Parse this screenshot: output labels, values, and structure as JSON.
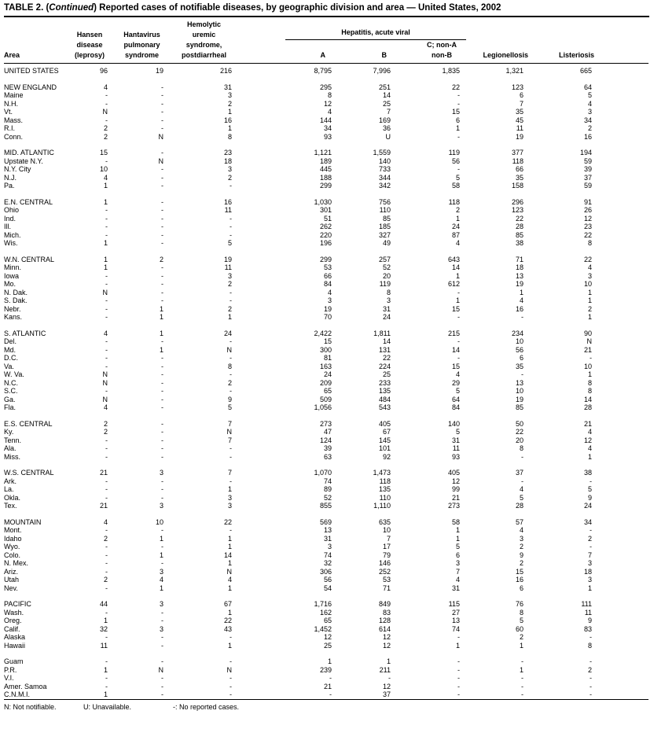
{
  "page": {
    "title": {
      "prefix": "TABLE 2. (",
      "continued": "Continued",
      "suffix": ") Reported cases of notifiable diseases, by geographic division and area — United States, 2002"
    },
    "footnotes": [
      "N: Not notifiable.",
      "U: Unavailable.",
      "-: No reported cases."
    ]
  },
  "columns": {
    "area": "Area",
    "hansen_lines": [
      "Hansen",
      "disease",
      "(leprosy)"
    ],
    "hantavirus_lines": [
      "Hantavirus",
      "pulmonary",
      "syndrome"
    ],
    "hus_lines": [
      "Hemolytic",
      "uremic",
      "syndrome,",
      "postdiarrheal"
    ],
    "hepatitis_group": "Hepatitis, acute viral",
    "hep_a": "A",
    "hep_b": "B",
    "hep_c_lines": [
      "C; non-A",
      "non-B"
    ],
    "legionellosis": "Legionellosis",
    "listeriosis": "Listeriosis"
  },
  "rows": [
    {
      "area": "UNITED STATES",
      "group_start": false,
      "values": [
        "96",
        "19",
        "216",
        "8,795",
        "7,996",
        "1,835",
        "1,321",
        "665"
      ]
    },
    {
      "area": "NEW ENGLAND",
      "group_start": true,
      "values": [
        "4",
        "-",
        "31",
        "295",
        "251",
        "22",
        "123",
        "64"
      ]
    },
    {
      "area": "Maine",
      "group_start": false,
      "values": [
        "-",
        "-",
        "3",
        "8",
        "14",
        "-",
        "6",
        "5"
      ]
    },
    {
      "area": "N.H.",
      "group_start": false,
      "values": [
        "-",
        "-",
        "2",
        "12",
        "25",
        "-",
        "7",
        "4"
      ]
    },
    {
      "area": "Vt.",
      "group_start": false,
      "values": [
        "N",
        "-",
        "1",
        "4",
        "7",
        "15",
        "35",
        "3"
      ]
    },
    {
      "area": "Mass.",
      "group_start": false,
      "values": [
        "-",
        "-",
        "16",
        "144",
        "169",
        "6",
        "45",
        "34"
      ]
    },
    {
      "area": "R.I.",
      "group_start": false,
      "values": [
        "2",
        "-",
        "1",
        "34",
        "36",
        "1",
        "11",
        "2"
      ]
    },
    {
      "area": "Conn.",
      "group_start": false,
      "values": [
        "2",
        "N",
        "8",
        "93",
        "U",
        "-",
        "19",
        "16"
      ]
    },
    {
      "area": "MID. ATLANTIC",
      "group_start": true,
      "values": [
        "15",
        "-",
        "23",
        "1,121",
        "1,559",
        "119",
        "377",
        "194"
      ]
    },
    {
      "area": "Upstate N.Y.",
      "group_start": false,
      "values": [
        "-",
        "N",
        "18",
        "189",
        "140",
        "56",
        "118",
        "59"
      ]
    },
    {
      "area": "N.Y. City",
      "group_start": false,
      "values": [
        "10",
        "-",
        "3",
        "445",
        "733",
        "-",
        "66",
        "39"
      ]
    },
    {
      "area": "N.J.",
      "group_start": false,
      "values": [
        "4",
        "-",
        "2",
        "188",
        "344",
        "5",
        "35",
        "37"
      ]
    },
    {
      "area": "Pa.",
      "group_start": false,
      "values": [
        "1",
        "-",
        "-",
        "299",
        "342",
        "58",
        "158",
        "59"
      ]
    },
    {
      "area": "E.N. CENTRAL",
      "group_start": true,
      "values": [
        "1",
        "-",
        "16",
        "1,030",
        "756",
        "118",
        "296",
        "91"
      ]
    },
    {
      "area": "Ohio",
      "group_start": false,
      "values": [
        "-",
        "-",
        "11",
        "301",
        "110",
        "2",
        "123",
        "26"
      ]
    },
    {
      "area": "Ind.",
      "group_start": false,
      "values": [
        "-",
        "-",
        "-",
        "51",
        "85",
        "1",
        "22",
        "12"
      ]
    },
    {
      "area": "Ill.",
      "group_start": false,
      "values": [
        "-",
        "-",
        "-",
        "262",
        "185",
        "24",
        "28",
        "23"
      ]
    },
    {
      "area": "Mich.",
      "group_start": false,
      "values": [
        "-",
        "-",
        "-",
        "220",
        "327",
        "87",
        "85",
        "22"
      ]
    },
    {
      "area": "Wis.",
      "group_start": false,
      "values": [
        "1",
        "-",
        "5",
        "196",
        "49",
        "4",
        "38",
        "8"
      ]
    },
    {
      "area": "W.N. CENTRAL",
      "group_start": true,
      "values": [
        "1",
        "2",
        "19",
        "299",
        "257",
        "643",
        "71",
        "22"
      ]
    },
    {
      "area": "Minn.",
      "group_start": false,
      "values": [
        "1",
        "-",
        "11",
        "53",
        "52",
        "14",
        "18",
        "4"
      ]
    },
    {
      "area": "Iowa",
      "group_start": false,
      "values": [
        "-",
        "-",
        "3",
        "66",
        "20",
        "1",
        "13",
        "3"
      ]
    },
    {
      "area": "Mo.",
      "group_start": false,
      "values": [
        "-",
        "-",
        "2",
        "84",
        "119",
        "612",
        "19",
        "10"
      ]
    },
    {
      "area": "N. Dak.",
      "group_start": false,
      "values": [
        "N",
        "-",
        "-",
        "4",
        "8",
        "-",
        "1",
        "1"
      ]
    },
    {
      "area": "S. Dak.",
      "group_start": false,
      "values": [
        "-",
        "-",
        "-",
        "3",
        "3",
        "1",
        "4",
        "1"
      ]
    },
    {
      "area": "Nebr.",
      "group_start": false,
      "values": [
        "-",
        "1",
        "2",
        "19",
        "31",
        "15",
        "16",
        "2"
      ]
    },
    {
      "area": "Kans.",
      "group_start": false,
      "values": [
        "-",
        "1",
        "1",
        "70",
        "24",
        "-",
        "-",
        "1"
      ]
    },
    {
      "area": "S. ATLANTIC",
      "group_start": true,
      "values": [
        "4",
        "1",
        "24",
        "2,422",
        "1,811",
        "215",
        "234",
        "90"
      ]
    },
    {
      "area": "Del.",
      "group_start": false,
      "values": [
        "-",
        "-",
        "-",
        "15",
        "14",
        "-",
        "10",
        "N"
      ]
    },
    {
      "area": "Md.",
      "group_start": false,
      "values": [
        "-",
        "1",
        "N",
        "300",
        "131",
        "14",
        "56",
        "21"
      ]
    },
    {
      "area": "D.C.",
      "group_start": false,
      "values": [
        "-",
        "-",
        "-",
        "81",
        "22",
        "-",
        "6",
        "-"
      ]
    },
    {
      "area": "Va.",
      "group_start": false,
      "values": [
        "-",
        "-",
        "8",
        "163",
        "224",
        "15",
        "35",
        "10"
      ]
    },
    {
      "area": "W. Va.",
      "group_start": false,
      "values": [
        "N",
        "-",
        "-",
        "24",
        "25",
        "4",
        "-",
        "1"
      ]
    },
    {
      "area": "N.C.",
      "group_start": false,
      "values": [
        "N",
        "-",
        "2",
        "209",
        "233",
        "29",
        "13",
        "8"
      ]
    },
    {
      "area": "S.C.",
      "group_start": false,
      "values": [
        "-",
        "-",
        "-",
        "65",
        "135",
        "5",
        "10",
        "8"
      ]
    },
    {
      "area": "Ga.",
      "group_start": false,
      "values": [
        "N",
        "-",
        "9",
        "509",
        "484",
        "64",
        "19",
        "14"
      ]
    },
    {
      "area": "Fla.",
      "group_start": false,
      "values": [
        "4",
        "-",
        "5",
        "1,056",
        "543",
        "84",
        "85",
        "28"
      ]
    },
    {
      "area": "E.S. CENTRAL",
      "group_start": true,
      "values": [
        "2",
        "-",
        "7",
        "273",
        "405",
        "140",
        "50",
        "21"
      ]
    },
    {
      "area": "Ky.",
      "group_start": false,
      "values": [
        "2",
        "-",
        "N",
        "47",
        "67",
        "5",
        "22",
        "4"
      ]
    },
    {
      "area": "Tenn.",
      "group_start": false,
      "values": [
        "-",
        "-",
        "7",
        "124",
        "145",
        "31",
        "20",
        "12"
      ]
    },
    {
      "area": "Ala.",
      "group_start": false,
      "values": [
        "-",
        "-",
        "-",
        "39",
        "101",
        "11",
        "8",
        "4"
      ]
    },
    {
      "area": "Miss.",
      "group_start": false,
      "values": [
        "-",
        "-",
        "-",
        "63",
        "92",
        "93",
        "-",
        "1"
      ]
    },
    {
      "area": "W.S. CENTRAL",
      "group_start": true,
      "values": [
        "21",
        "3",
        "7",
        "1,070",
        "1,473",
        "405",
        "37",
        "38"
      ]
    },
    {
      "area": "Ark.",
      "group_start": false,
      "values": [
        "-",
        "-",
        "-",
        "74",
        "118",
        "12",
        "-",
        "-"
      ]
    },
    {
      "area": "La.",
      "group_start": false,
      "values": [
        "-",
        "-",
        "1",
        "89",
        "135",
        "99",
        "4",
        "5"
      ]
    },
    {
      "area": "Okla.",
      "group_start": false,
      "values": [
        "-",
        "-",
        "3",
        "52",
        "110",
        "21",
        "5",
        "9"
      ]
    },
    {
      "area": "Tex.",
      "group_start": false,
      "values": [
        "21",
        "3",
        "3",
        "855",
        "1,110",
        "273",
        "28",
        "24"
      ]
    },
    {
      "area": "MOUNTAIN",
      "group_start": true,
      "values": [
        "4",
        "10",
        "22",
        "569",
        "635",
        "58",
        "57",
        "34"
      ]
    },
    {
      "area": "Mont.",
      "group_start": false,
      "values": [
        "-",
        "-",
        "-",
        "13",
        "10",
        "1",
        "4",
        "-"
      ]
    },
    {
      "area": "Idaho",
      "group_start": false,
      "values": [
        "2",
        "1",
        "1",
        "31",
        "7",
        "1",
        "3",
        "2"
      ]
    },
    {
      "area": "Wyo.",
      "group_start": false,
      "values": [
        "-",
        "-",
        "1",
        "3",
        "17",
        "5",
        "2",
        "-"
      ]
    },
    {
      "area": "Colo.",
      "group_start": false,
      "values": [
        "-",
        "1",
        "14",
        "74",
        "79",
        "6",
        "9",
        "7"
      ]
    },
    {
      "area": "N. Mex.",
      "group_start": false,
      "values": [
        "-",
        "-",
        "1",
        "32",
        "146",
        "3",
        "2",
        "3"
      ]
    },
    {
      "area": "Ariz.",
      "group_start": false,
      "values": [
        "-",
        "3",
        "N",
        "306",
        "252",
        "7",
        "15",
        "18"
      ]
    },
    {
      "area": "Utah",
      "group_start": false,
      "values": [
        "2",
        "4",
        "4",
        "56",
        "53",
        "4",
        "16",
        "3"
      ]
    },
    {
      "area": "Nev.",
      "group_start": false,
      "values": [
        "-",
        "1",
        "1",
        "54",
        "71",
        "31",
        "6",
        "1"
      ]
    },
    {
      "area": "PACIFIC",
      "group_start": true,
      "values": [
        "44",
        "3",
        "67",
        "1,716",
        "849",
        "115",
        "76",
        "111"
      ]
    },
    {
      "area": "Wash.",
      "group_start": false,
      "values": [
        "-",
        "-",
        "1",
        "162",
        "83",
        "27",
        "8",
        "11"
      ]
    },
    {
      "area": "Oreg.",
      "group_start": false,
      "values": [
        "1",
        "-",
        "22",
        "65",
        "128",
        "13",
        "5",
        "9"
      ]
    },
    {
      "area": "Calif.",
      "group_start": false,
      "values": [
        "32",
        "3",
        "43",
        "1,452",
        "614",
        "74",
        "60",
        "83"
      ]
    },
    {
      "area": "Alaska",
      "group_start": false,
      "values": [
        "-",
        "-",
        "-",
        "12",
        "12",
        "-",
        "2",
        "-"
      ]
    },
    {
      "area": "Hawaii",
      "group_start": false,
      "values": [
        "11",
        "-",
        "1",
        "25",
        "12",
        "1",
        "1",
        "8"
      ]
    },
    {
      "area": "Guam",
      "group_start": true,
      "values": [
        "-",
        "-",
        "-",
        "1",
        "1",
        "-",
        "-",
        "-"
      ]
    },
    {
      "area": "P.R.",
      "group_start": false,
      "values": [
        "1",
        "N",
        "N",
        "239",
        "211",
        "-",
        "1",
        "2"
      ]
    },
    {
      "area": "V.I.",
      "group_start": false,
      "values": [
        "-",
        "-",
        "-",
        "-",
        "-",
        "-",
        "-",
        "-"
      ]
    },
    {
      "area": "Amer. Samoa",
      "group_start": false,
      "values": [
        "-",
        "-",
        "-",
        "21",
        "12",
        "-",
        "-",
        "-"
      ]
    },
    {
      "area": "C.N.M.I.",
      "group_start": false,
      "values": [
        "1",
        "-",
        "-",
        "-",
        "37",
        "-",
        "-",
        "-"
      ]
    }
  ]
}
